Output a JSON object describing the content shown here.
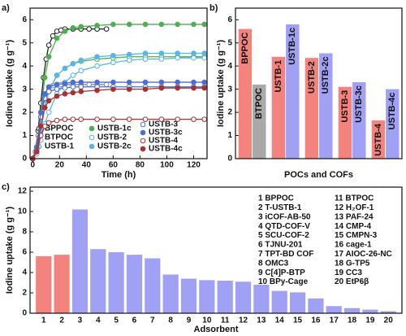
{
  "chart_data": [
    {
      "type": "line",
      "panel_label": "a)",
      "xlabel": "Time (h)",
      "ylabel": "Iodine uptake (g g⁻¹)",
      "xlim": [
        -2,
        130
      ],
      "xticks": [
        0,
        20,
        40,
        60,
        80,
        100,
        120
      ],
      "ylim": [
        0,
        6.5
      ],
      "yticks": [
        0,
        1,
        2,
        3,
        4,
        5,
        6
      ],
      "series": [
        {
          "name": "BPPOC",
          "color": "#222222",
          "filled": false,
          "x": [
            0,
            2,
            4,
            6,
            8,
            10,
            12,
            15,
            18,
            21,
            24,
            30,
            36,
            42,
            48,
            55
          ],
          "values": [
            0,
            0.3,
            1.2,
            2.4,
            3.5,
            4.3,
            4.9,
            5.3,
            5.5,
            5.55,
            5.6,
            5.6,
            5.6,
            5.6,
            5.6,
            5.6
          ]
        },
        {
          "name": "BTPOC",
          "color": "#888888",
          "filled": false,
          "x": [
            0,
            2,
            4,
            6,
            8,
            10,
            12,
            15,
            18,
            21,
            24,
            30,
            36,
            42,
            48,
            55
          ],
          "values": [
            0,
            0.3,
            1.0,
            1.8,
            2.4,
            2.8,
            3.0,
            3.15,
            3.2,
            3.2,
            3.2,
            3.2,
            3.2,
            3.2,
            3.2,
            3.2
          ]
        },
        {
          "name": "USTB-1",
          "color": "#4caf50",
          "filled": false,
          "x": [
            0,
            3,
            6,
            9,
            12,
            18,
            24,
            30,
            36,
            48,
            60,
            72,
            84,
            96,
            108,
            120,
            128
          ],
          "values": [
            0,
            0.3,
            1.2,
            2.2,
            2.9,
            3.6,
            3.9,
            4.1,
            4.2,
            4.3,
            4.35,
            4.4,
            4.4,
            4.4,
            4.4,
            4.4,
            4.4
          ]
        },
        {
          "name": "USTB-1c",
          "color": "#4caf50",
          "filled": true,
          "x": [
            0,
            3,
            6,
            9,
            12,
            18,
            24,
            30,
            36,
            48,
            60,
            72,
            84,
            96,
            108,
            120,
            128
          ],
          "values": [
            0,
            0.5,
            2.0,
            3.5,
            4.4,
            5.2,
            5.5,
            5.65,
            5.7,
            5.75,
            5.8,
            5.8,
            5.8,
            5.8,
            5.8,
            5.8,
            5.8
          ]
        },
        {
          "name": "USTB-2",
          "color": "#5ab4e6",
          "filled": false,
          "x": [
            0,
            3,
            6,
            9,
            12,
            18,
            24,
            30,
            36,
            48,
            60,
            72,
            84,
            96,
            108,
            120,
            128
          ],
          "values": [
            0,
            0.2,
            0.8,
            1.5,
            2.0,
            2.8,
            3.3,
            3.6,
            3.8,
            4.0,
            4.15,
            4.25,
            4.3,
            4.3,
            4.35,
            4.35,
            4.35
          ]
        },
        {
          "name": "USTB-2c",
          "color": "#5ab4e6",
          "filled": true,
          "x": [
            0,
            3,
            6,
            9,
            12,
            18,
            24,
            30,
            36,
            48,
            60,
            72,
            84,
            96,
            108,
            120,
            128
          ],
          "values": [
            0,
            0.3,
            1.2,
            2.2,
            2.9,
            3.6,
            3.9,
            4.1,
            4.25,
            4.4,
            4.45,
            4.5,
            4.55,
            4.55,
            4.55,
            4.55,
            4.55
          ]
        },
        {
          "name": "USTB-3",
          "color": "#4a6fd0",
          "filled": false,
          "x": [
            0,
            3,
            6,
            9,
            12,
            18,
            24,
            30,
            36,
            48,
            60,
            72,
            84,
            96,
            108,
            120,
            128
          ],
          "values": [
            0,
            0.4,
            1.8,
            2.6,
            2.9,
            3.0,
            3.05,
            3.1,
            3.1,
            3.1,
            3.1,
            3.1,
            3.1,
            3.1,
            3.1,
            3.1,
            3.1
          ]
        },
        {
          "name": "USTB-3c",
          "color": "#4a6fd0",
          "filled": true,
          "x": [
            0,
            3,
            6,
            9,
            12,
            18,
            24,
            30,
            36,
            48,
            60,
            72,
            84,
            96,
            108,
            120,
            128
          ],
          "values": [
            0,
            0.5,
            2.0,
            2.8,
            3.1,
            3.2,
            3.25,
            3.3,
            3.3,
            3.3,
            3.3,
            3.3,
            3.3,
            3.3,
            3.3,
            3.3,
            3.3
          ]
        },
        {
          "name": "USTB-4",
          "color": "#a83232",
          "filled": false,
          "x": [
            0,
            3,
            6,
            9,
            12,
            18,
            24,
            30,
            36,
            48,
            60,
            72,
            84,
            96,
            108,
            120,
            128
          ],
          "values": [
            0,
            0.3,
            1.0,
            1.4,
            1.55,
            1.65,
            1.7,
            1.7,
            1.7,
            1.7,
            1.7,
            1.7,
            1.7,
            1.7,
            1.7,
            1.7,
            1.7
          ]
        },
        {
          "name": "USTB-4c",
          "color": "#a83232",
          "filled": true,
          "x": [
            0,
            3,
            6,
            9,
            12,
            18,
            24,
            30,
            36,
            48,
            60,
            72,
            84,
            96,
            108,
            120,
            128
          ],
          "values": [
            0,
            0.3,
            1.4,
            2.2,
            2.5,
            2.7,
            2.8,
            2.85,
            2.9,
            2.95,
            3.0,
            3.0,
            3.0,
            3.05,
            3.05,
            3.05,
            3.05
          ]
        }
      ]
    },
    {
      "type": "bar",
      "panel_label": "b)",
      "xlabel": "POCs and COFs",
      "ylabel": "Iodine uptake (g g⁻¹)",
      "ylim": [
        0,
        6.5
      ],
      "yticks": [
        0,
        1,
        2,
        3,
        4,
        5,
        6
      ],
      "categories": [
        "BPPOC",
        "BTPOC",
        "USTB-1",
        "USTB-1c",
        "USTB-2",
        "USTB-2c",
        "USTB-3",
        "USTB-3c",
        "USTB-4",
        "USTB-4c"
      ],
      "values": [
        5.6,
        3.2,
        4.4,
        5.8,
        4.35,
        4.55,
        3.1,
        3.3,
        1.65,
        3.0
      ],
      "colors": [
        "#f4837d",
        "#a9a9a9",
        "#f4837d",
        "#a0a0f5",
        "#f4837d",
        "#a0a0f5",
        "#f4837d",
        "#a0a0f5",
        "#f4837d",
        "#a0a0f5"
      ]
    },
    {
      "type": "bar",
      "panel_label": "c)",
      "xlabel": "Adsorbent",
      "ylabel": "Iodine uptake (g g⁻¹)",
      "ylim": [
        0,
        12.4
      ],
      "yticks": [
        0,
        2,
        4,
        6,
        8,
        10,
        12
      ],
      "categories": [
        "1",
        "2",
        "3",
        "4",
        "5",
        "6",
        "7",
        "8",
        "9",
        "10",
        "11",
        "12",
        "13",
        "14",
        "15",
        "16",
        "17",
        "18",
        "19",
        "20"
      ],
      "values": [
        5.6,
        5.75,
        10.2,
        6.3,
        6.0,
        5.75,
        5.4,
        3.8,
        3.4,
        3.25,
        3.2,
        3.1,
        2.8,
        2.2,
        2.05,
        1.45,
        0.7,
        0.5,
        0.35,
        0.2
      ],
      "colors": [
        "#f4837d",
        "#f4837d",
        "#a0a0f5",
        "#a0a0f5",
        "#a0a0f5",
        "#a0a0f5",
        "#a0a0f5",
        "#a0a0f5",
        "#a0a0f5",
        "#a0a0f5",
        "#a0a0f5",
        "#a0a0f5",
        "#a0a0f5",
        "#a0a0f5",
        "#a0a0f5",
        "#a0a0f5",
        "#a0a0f5",
        "#a0a0f5",
        "#a0a0f5",
        "#a0a0f5"
      ],
      "legend_items": [
        "1 BPPOC",
        "2 T-USTB-1",
        "3 iCOF-AB-50",
        "4 QTD-COF-V",
        "5 SCU-COF-2",
        "6 TJNU-201",
        "7 TPT-BD COF",
        "8 OMC3",
        "9 C[4]P-BTP",
        "10 BPy-Cage",
        "11 BTPOC",
        "12 H₂OF-1",
        "13 PAF-24",
        "14 CMP-4",
        "15 CMPN-3",
        "16 cage-1",
        "17 AIOC-26-NC",
        "18 G-TP5",
        "19 CC3",
        "20 EtP6β"
      ]
    }
  ]
}
